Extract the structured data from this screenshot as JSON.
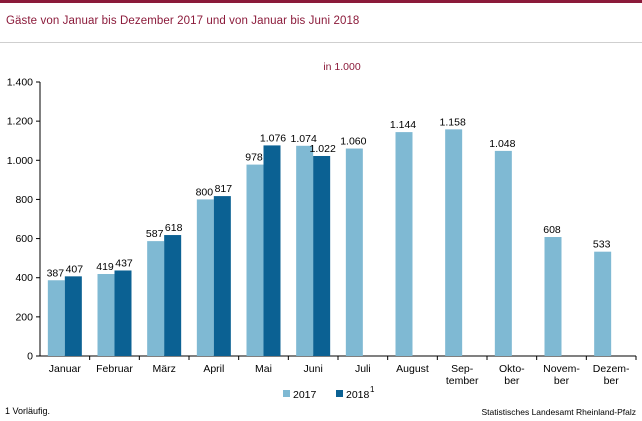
{
  "header": {
    "title": "Gäste von Januar bis Dezember 2017 und von Januar bis Juni 2018"
  },
  "footer": {
    "footnote": "1 Vorläufig.",
    "source": "Statistisches Landesamt Rheinland-Pfalz"
  },
  "chart_data": {
    "type": "bar",
    "unit_label": "in 1.000",
    "categories": [
      [
        "Januar"
      ],
      [
        "Februar"
      ],
      [
        "März"
      ],
      [
        "April"
      ],
      [
        "Mai"
      ],
      [
        "Juni"
      ],
      [
        "Juli"
      ],
      [
        "August"
      ],
      [
        "Sep-",
        "tember"
      ],
      [
        "Okto-",
        "ber"
      ],
      [
        "Novem-",
        "ber"
      ],
      [
        "Dezem-",
        "ber"
      ]
    ],
    "series": [
      {
        "name": "2017",
        "color": "#7fb9d3",
        "values": [
          387,
          419,
          587,
          800,
          978,
          1074,
          1060,
          1144,
          1158,
          1048,
          608,
          533
        ],
        "labels": [
          "387",
          "419",
          "587",
          "800",
          "978",
          "1.074",
          "1.060",
          "1.144",
          "1.158",
          "1.048",
          "608",
          "533"
        ]
      },
      {
        "name": "2018",
        "footnote_mark": "1",
        "color": "#0b6193",
        "values": [
          407,
          437,
          618,
          817,
          1076,
          1022,
          null,
          null,
          null,
          null,
          null,
          null
        ],
        "labels": [
          "407",
          "437",
          "618",
          "817",
          "1.076",
          "1.022",
          "",
          "",
          "",
          "",
          "",
          ""
        ]
      }
    ],
    "ylim": [
      0,
      1400
    ],
    "yticks": [
      0,
      200,
      400,
      600,
      800,
      1000,
      1200,
      1400
    ],
    "ytick_labels": [
      "0",
      "200",
      "400",
      "600",
      "800",
      "1.000",
      "1.200",
      "1.400"
    ],
    "grid": false,
    "legend": "bottom-center"
  }
}
